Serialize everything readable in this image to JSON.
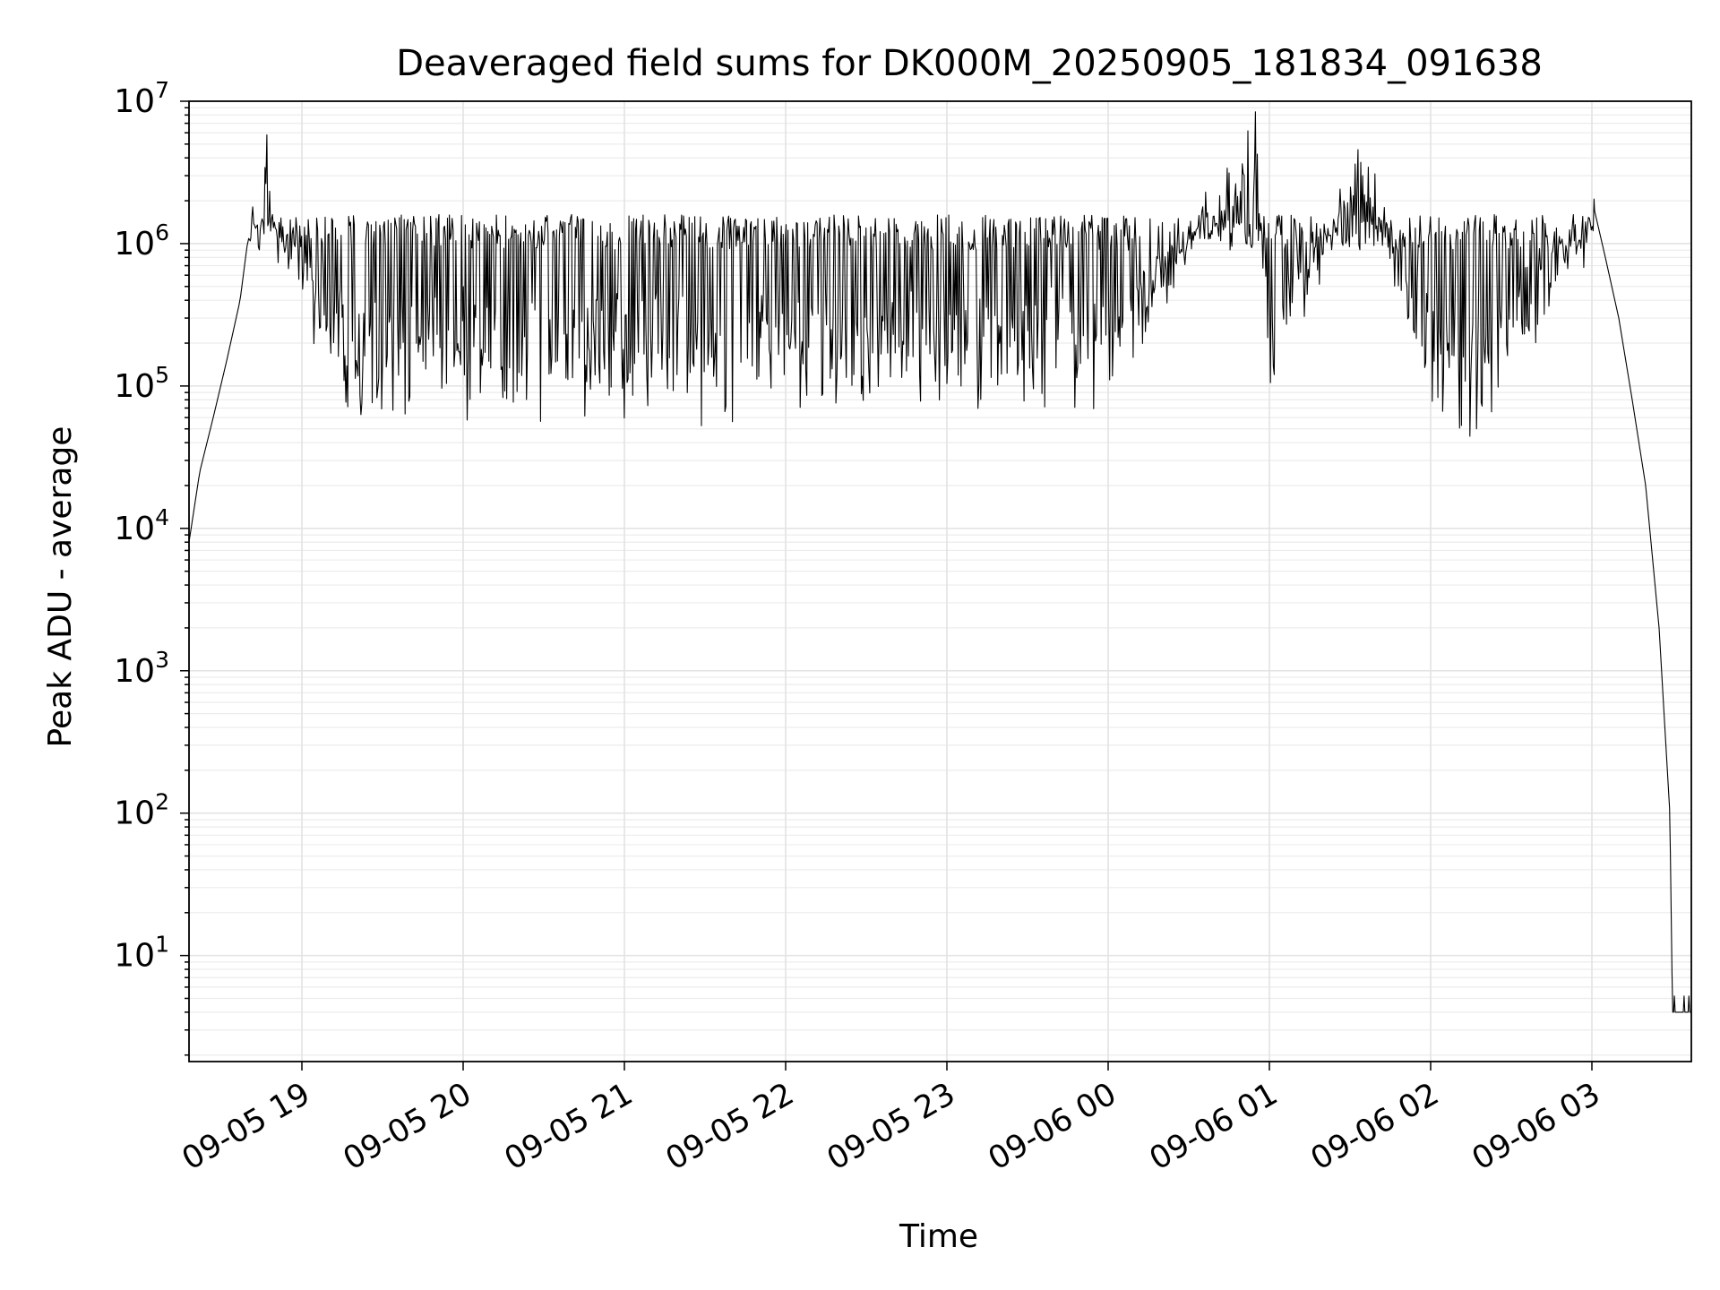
{
  "chart_data": {
    "type": "line",
    "title": "Deaveraged field sums for DK000M_20250905_181834_091638",
    "xlabel": "Time",
    "ylabel": "Peak ADU - average",
    "y_scale": "log",
    "ylim": [
      1.8,
      10000000
    ],
    "xlim": [
      "2025-09-05 18:18",
      "2025-09-06 03:37"
    ],
    "x_ticks": [
      "09-05 19",
      "09-05 20",
      "09-05 21",
      "09-05 22",
      "09-05 23",
      "09-06 00",
      "09-06 01",
      "09-06 02",
      "09-06 03"
    ],
    "y_ticks": [
      {
        "base": "10",
        "exp": "1"
      },
      {
        "base": "10",
        "exp": "2"
      },
      {
        "base": "10",
        "exp": "3"
      },
      {
        "base": "10",
        "exp": "4"
      },
      {
        "base": "10",
        "exp": "5"
      },
      {
        "base": "10",
        "exp": "6"
      },
      {
        "base": "10",
        "exp": "7"
      }
    ],
    "grid": true,
    "line_color": "#000000",
    "series": [
      {
        "name": "",
        "points": [
          [
            "2025-09-05 18:18",
            8000
          ],
          [
            "2025-09-05 18:22",
            25000
          ],
          [
            "2025-09-05 18:27",
            60000
          ],
          [
            "2025-09-05 18:32",
            150000
          ],
          [
            "2025-09-05 18:37",
            400000
          ],
          [
            "2025-09-05 18:40",
            1100000
          ],
          [
            "2025-09-05 18:45",
            800000
          ],
          [
            "2025-09-05 18:47",
            5800000
          ],
          [
            "2025-09-05 18:50",
            500000
          ],
          [
            "2025-09-05 19:00",
            300000
          ],
          [
            "2025-09-05 19:15",
            60000
          ],
          [
            "2025-09-05 19:25",
            40000
          ],
          [
            "2025-09-05 20:00",
            50000
          ],
          [
            "2025-09-05 21:00",
            50000
          ],
          [
            "2025-09-05 22:00",
            50000
          ],
          [
            "2025-09-05 23:00",
            60000
          ],
          [
            "2025-09-06 00:00",
            60000
          ],
          [
            "2025-09-06 00:55",
            4200000
          ],
          [
            "2025-09-06 01:00",
            60000
          ],
          [
            "2025-09-06 01:35",
            3000000
          ],
          [
            "2025-09-06 02:00",
            35000
          ],
          [
            "2025-09-06 02:15",
            25000
          ],
          [
            "2025-09-06 02:30",
            100000
          ],
          [
            "2025-09-06 02:45",
            300000
          ],
          [
            "2025-09-06 03:00",
            800000
          ],
          [
            "2025-09-06 03:01",
            1700000
          ],
          [
            "2025-09-06 03:05",
            800000
          ],
          [
            "2025-09-06 03:10",
            300000
          ],
          [
            "2025-09-06 03:15",
            80000
          ],
          [
            "2025-09-06 03:20",
            20000
          ],
          [
            "2025-09-06 03:25",
            2000
          ],
          [
            "2025-09-06 03:29",
            100
          ],
          [
            "2025-09-06 03:30",
            4
          ],
          [
            "2025-09-06 03:37",
            4
          ]
        ]
      }
    ]
  }
}
